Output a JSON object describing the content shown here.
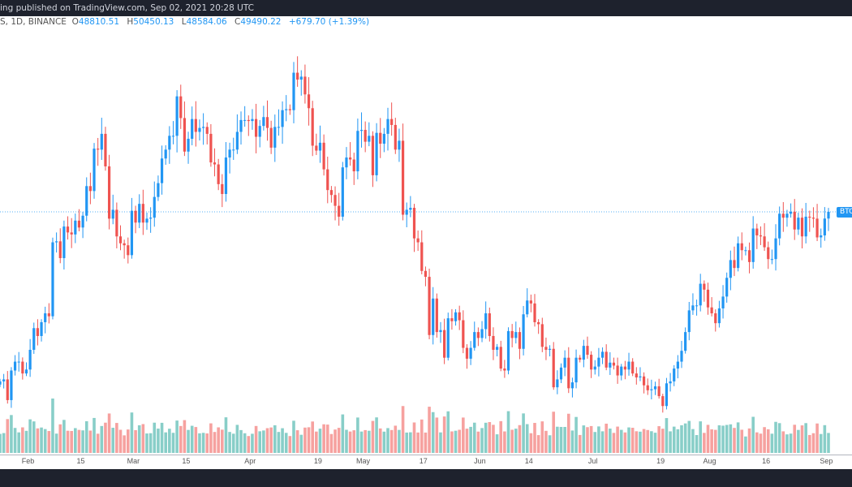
{
  "header": {
    "published_text": "ing published on TradingView.com, Sep 02, 2021 20:28 UTC"
  },
  "legend": {
    "symbol_info": "S, 1D, BINANCE",
    "open_label": "O",
    "open": "48810.51",
    "high_label": "H",
    "high": "50450.13",
    "low_label": "L",
    "low": "48584.06",
    "close_label": "C",
    "close": "49490.22",
    "change": "+679.70 (+1.39%)"
  },
  "price_label": "BTC",
  "colors": {
    "up": "#2196f3",
    "down": "#ef5350",
    "vol_up": "#26a69a",
    "vol_down": "#ef5350",
    "background": "#ffffff",
    "bar": "#1e222d"
  },
  "chart_data": {
    "type": "candlestick",
    "interval": "1D",
    "start_date": "2021-01-25",
    "end_date": "2021-09-02",
    "last_close": 49490.22,
    "closes": [
      32300,
      32500,
      30400,
      33400,
      34300,
      34300,
      33100,
      33500,
      35500,
      37700,
      36900,
      38300,
      39200,
      38900,
      46400,
      46500,
      44800,
      48000,
      47400,
      47200,
      48600,
      47900,
      49100,
      52100,
      51600,
      55900,
      55800,
      57400,
      54100,
      48800,
      49700,
      47000,
      46300,
      46100,
      45100,
      49600,
      48400,
      50300,
      48400,
      48800,
      48900,
      51000,
      52400,
      54900,
      55800,
      57200,
      57200,
      61200,
      59000,
      55600,
      56900,
      58900,
      57600,
      58000,
      58100,
      57400,
      54500,
      54300,
      52300,
      51300,
      55000,
      55800,
      55800,
      57600,
      58800,
      58800,
      58700,
      58900,
      57100,
      58200,
      59100,
      58000,
      56000,
      58100,
      58100,
      59800,
      59900,
      59800,
      63600,
      62900,
      63200,
      61400,
      60000,
      56200,
      55700,
      56500,
      53800,
      51700,
      51200,
      50100,
      49000,
      54000,
      55000,
      54800,
      53600,
      57700,
      57800,
      56600,
      57200,
      53200,
      57500,
      56400,
      57400,
      58900,
      58300,
      55800,
      56700,
      49200,
      49700,
      49900,
      46800,
      46400,
      43500,
      42900,
      37000,
      40700,
      37300,
      37500,
      34700,
      38700,
      38400,
      39300,
      38500,
      35700,
      34600,
      35700,
      37300,
      36700,
      37600,
      39200,
      36900,
      35500,
      35800,
      33600,
      33400,
      37400,
      36700,
      37300,
      35600,
      39100,
      40500,
      40200,
      38300,
      38100,
      35800,
      35500,
      35600,
      31700,
      32500,
      33700,
      34700,
      31600,
      32200,
      34700,
      34500,
      35900,
      35000,
      33500,
      33800,
      34700,
      35300,
      33700,
      34200,
      33900,
      32900,
      33800,
      33500,
      34300,
      33100,
      32700,
      32800,
      31900,
      31400,
      31500,
      31800,
      30800,
      29800,
      32100,
      32300,
      33600,
      34300,
      35400,
      37300,
      39500,
      40000,
      40000,
      42200,
      41600,
      39800,
      39200,
      38200,
      39700,
      40900,
      42800,
      44600,
      43800,
      46300,
      45600,
      45600,
      44400,
      47800,
      47100,
      47000,
      45900,
      44700,
      44700,
      46800,
      49300,
      48900,
      49300,
      49500,
      47700,
      48900,
      47000,
      49000,
      48900,
      48800,
      46900,
      47100,
      48810.51,
      49490.22
    ],
    "x_tick_labels": [
      "Feb",
      "15",
      "Mar",
      "15",
      "Apr",
      "19",
      "May",
      "17",
      "Jun",
      "14",
      "Jul",
      "19",
      "Aug",
      "16",
      "Sep"
    ],
    "grid": false
  }
}
